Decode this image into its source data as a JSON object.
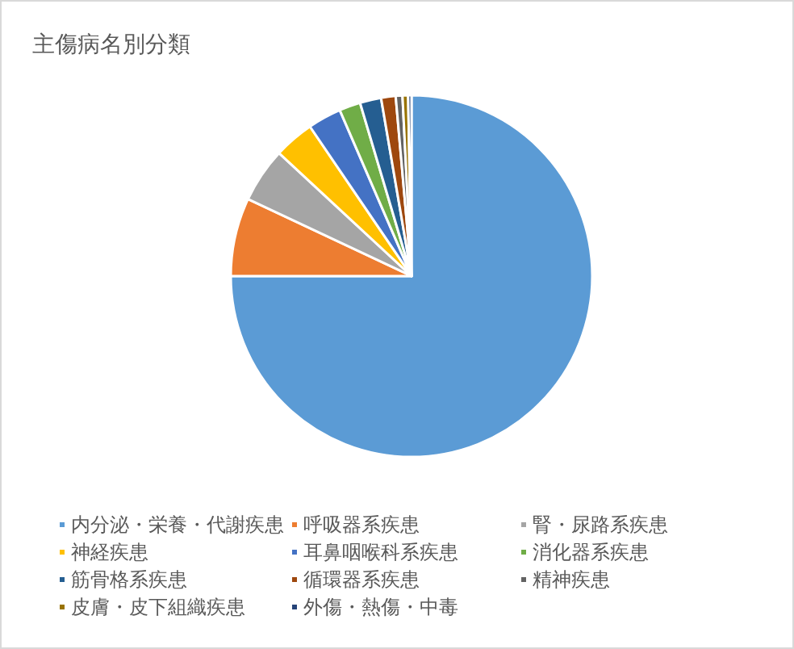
{
  "chart_data": {
    "type": "pie",
    "title": "主傷病名別分類",
    "categories": [
      "内分泌・栄養・代謝疾患",
      "呼吸器系疾患",
      "腎・尿路系疾患",
      "神経疾患",
      "耳鼻咽喉科系疾患",
      "消化器系疾患",
      "筋骨格系疾患",
      "循環器系疾患",
      "精神疾患",
      "皮膚・皮下組織疾患",
      "外傷・熱傷・中毒"
    ],
    "values": [
      75.0,
      7.0,
      4.9,
      3.6,
      3.0,
      1.9,
      1.9,
      1.3,
      0.6,
      0.5,
      0.3
    ],
    "colors": [
      "#5b9bd5",
      "#ed7d31",
      "#a5a5a5",
      "#ffc000",
      "#4472c4",
      "#70ad47",
      "#255e91",
      "#9e480e",
      "#636363",
      "#997300",
      "#264478"
    ],
    "legend": "bottom"
  }
}
